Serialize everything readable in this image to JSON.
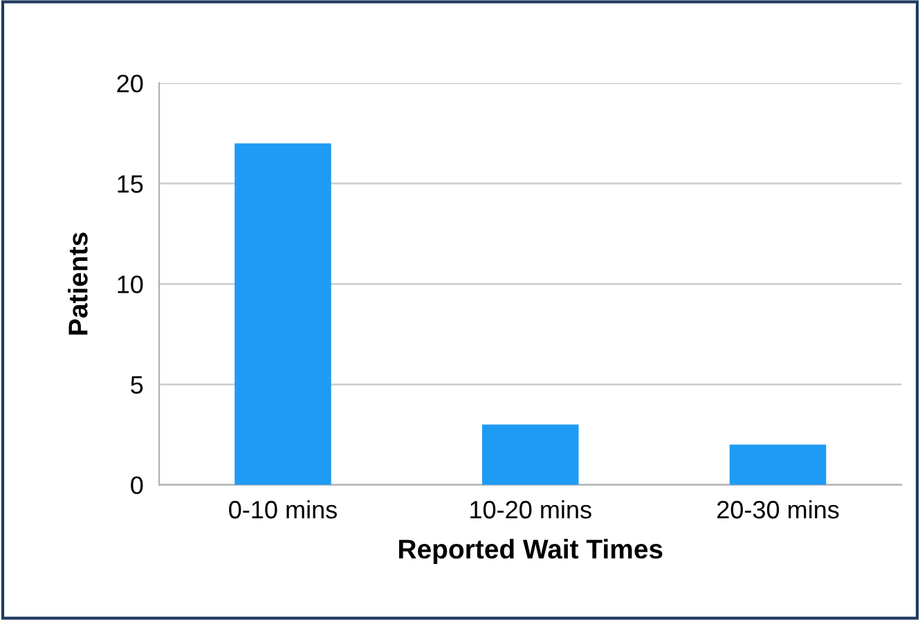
{
  "chart_data": {
    "type": "bar",
    "xlabel": "Reported Wait Times",
    "ylabel": "Patients",
    "categories": [
      "0-10 mins",
      "10-20 mins",
      "20-30 mins"
    ],
    "values": [
      17,
      3,
      2
    ],
    "color": "#1e9bf5",
    "ylim": [
      0,
      20
    ],
    "yticks": [
      0,
      5,
      10,
      15,
      20
    ],
    "grid": "y"
  }
}
